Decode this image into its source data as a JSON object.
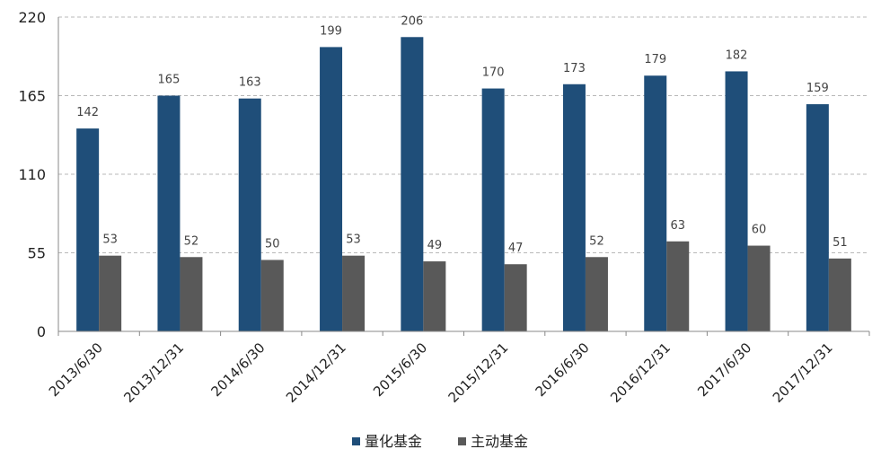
{
  "chart_data": {
    "type": "bar",
    "categories": [
      "2013/6/30",
      "2013/12/31",
      "2014/6/30",
      "2014/12/31",
      "2015/6/30",
      "2015/12/31",
      "2016/6/30",
      "2016/12/31",
      "2017/6/30",
      "2017/12/31"
    ],
    "series": [
      {
        "name": "量化基金",
        "color": "#1f4e79",
        "values": [
          142,
          165,
          163,
          199,
          206,
          170,
          173,
          179,
          182,
          159
        ]
      },
      {
        "name": "主动基金",
        "color": "#595959",
        "values": [
          53,
          52,
          50,
          53,
          49,
          47,
          52,
          63,
          60,
          51
        ]
      }
    ],
    "yticks": [
      0,
      55,
      110,
      165,
      220
    ],
    "ylim": [
      0,
      220
    ],
    "grid": true,
    "legend_position": "bottom-center",
    "title": "",
    "xlabel": "",
    "ylabel": ""
  }
}
